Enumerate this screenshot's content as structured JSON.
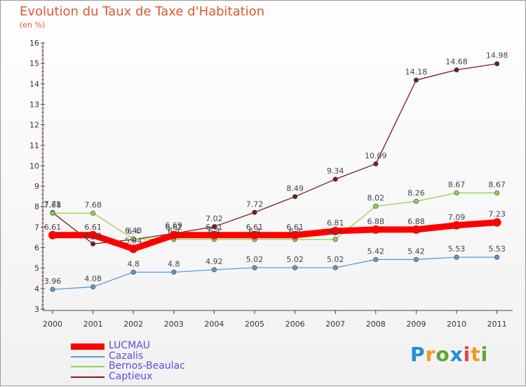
{
  "chart_data": {
    "type": "line",
    "title": "Evolution du Taux de Taxe d'Habitation",
    "subtitle": "(en %)",
    "xlabel": "",
    "ylabel": "",
    "categories": [
      "2000",
      "2001",
      "2002",
      "2003",
      "2004",
      "2005",
      "2006",
      "2007",
      "2008",
      "2009",
      "2010",
      "2011"
    ],
    "ylim": [
      3,
      16
    ],
    "yticks": [
      "3",
      "4",
      "5",
      "6",
      "7",
      "8",
      "9",
      "10",
      "11",
      "12",
      "13",
      "14",
      "15",
      "16"
    ],
    "grid": false,
    "legend_position": "bottom-left",
    "series": [
      {
        "name": "LUCMAU",
        "color": "#ff0000",
        "values": [
          6.61,
          6.61,
          5.94,
          6.61,
          6.61,
          6.61,
          6.61,
          6.81,
          6.88,
          6.88,
          7.09,
          7.23
        ],
        "labels": [
          "6.61",
          "6.61",
          "5.94",
          "6.61",
          "6.61",
          "6.61",
          "6.61",
          "6.81",
          "6.88",
          "6.88",
          "7.09",
          "7.23"
        ]
      },
      {
        "name": "Cazalis",
        "color": "#5b9bd5",
        "values": [
          3.96,
          4.08,
          4.8,
          4.8,
          4.92,
          5.02,
          5.02,
          5.02,
          5.42,
          5.42,
          5.53,
          5.53
        ],
        "labels": [
          "3.96",
          "4.08",
          "4.8",
          "4.8",
          "4.92",
          "5.02",
          "5.02",
          "5.02",
          "5.42",
          "5.42",
          "5.53",
          "5.53"
        ]
      },
      {
        "name": "Bernos-Beaulac",
        "color": "#8fd34f",
        "values": [
          7.68,
          7.68,
          6.43,
          6.4,
          6.4,
          6.4,
          6.4,
          6.4,
          8.02,
          8.26,
          8.67,
          8.67
        ],
        "labels": [
          "7.68",
          "7.68",
          "6.43",
          "6.4",
          "6.4",
          "6.4",
          "6.4",
          "6.4",
          "8.02",
          "8.26",
          "8.67",
          "8.67"
        ]
      },
      {
        "name": "Captieux",
        "color": "#7a1c1c",
        "values": [
          7.71,
          6.18,
          6.4,
          6.69,
          7.02,
          7.72,
          8.49,
          9.34,
          10.09,
          14.18,
          14.68,
          14.98
        ],
        "labels": [
          "7.71",
          "6.18",
          "6.4",
          "6.69",
          "7.02",
          "7.72",
          "8.49",
          "9.34",
          "10.09",
          "14.18",
          "14.68",
          "14.98"
        ]
      }
    ]
  },
  "legend": {
    "items": [
      {
        "label": "LUCMAU",
        "color": "#ff0000"
      },
      {
        "label": "Cazalis",
        "color": "#5b9bd5"
      },
      {
        "label": "Bernos-Beaulac",
        "color": "#8fd34f"
      },
      {
        "label": "Captieux",
        "color": "#7a1c1c"
      }
    ]
  },
  "logo": {
    "letters": [
      "P",
      "r",
      "o",
      "x",
      "i",
      "t",
      "i"
    ],
    "colors": [
      "#1f8fd6",
      "#f19a1b",
      "#5aa82e",
      "#1f8fd6",
      "#e8463a",
      "#f19a1b",
      "#5aa82e"
    ]
  }
}
